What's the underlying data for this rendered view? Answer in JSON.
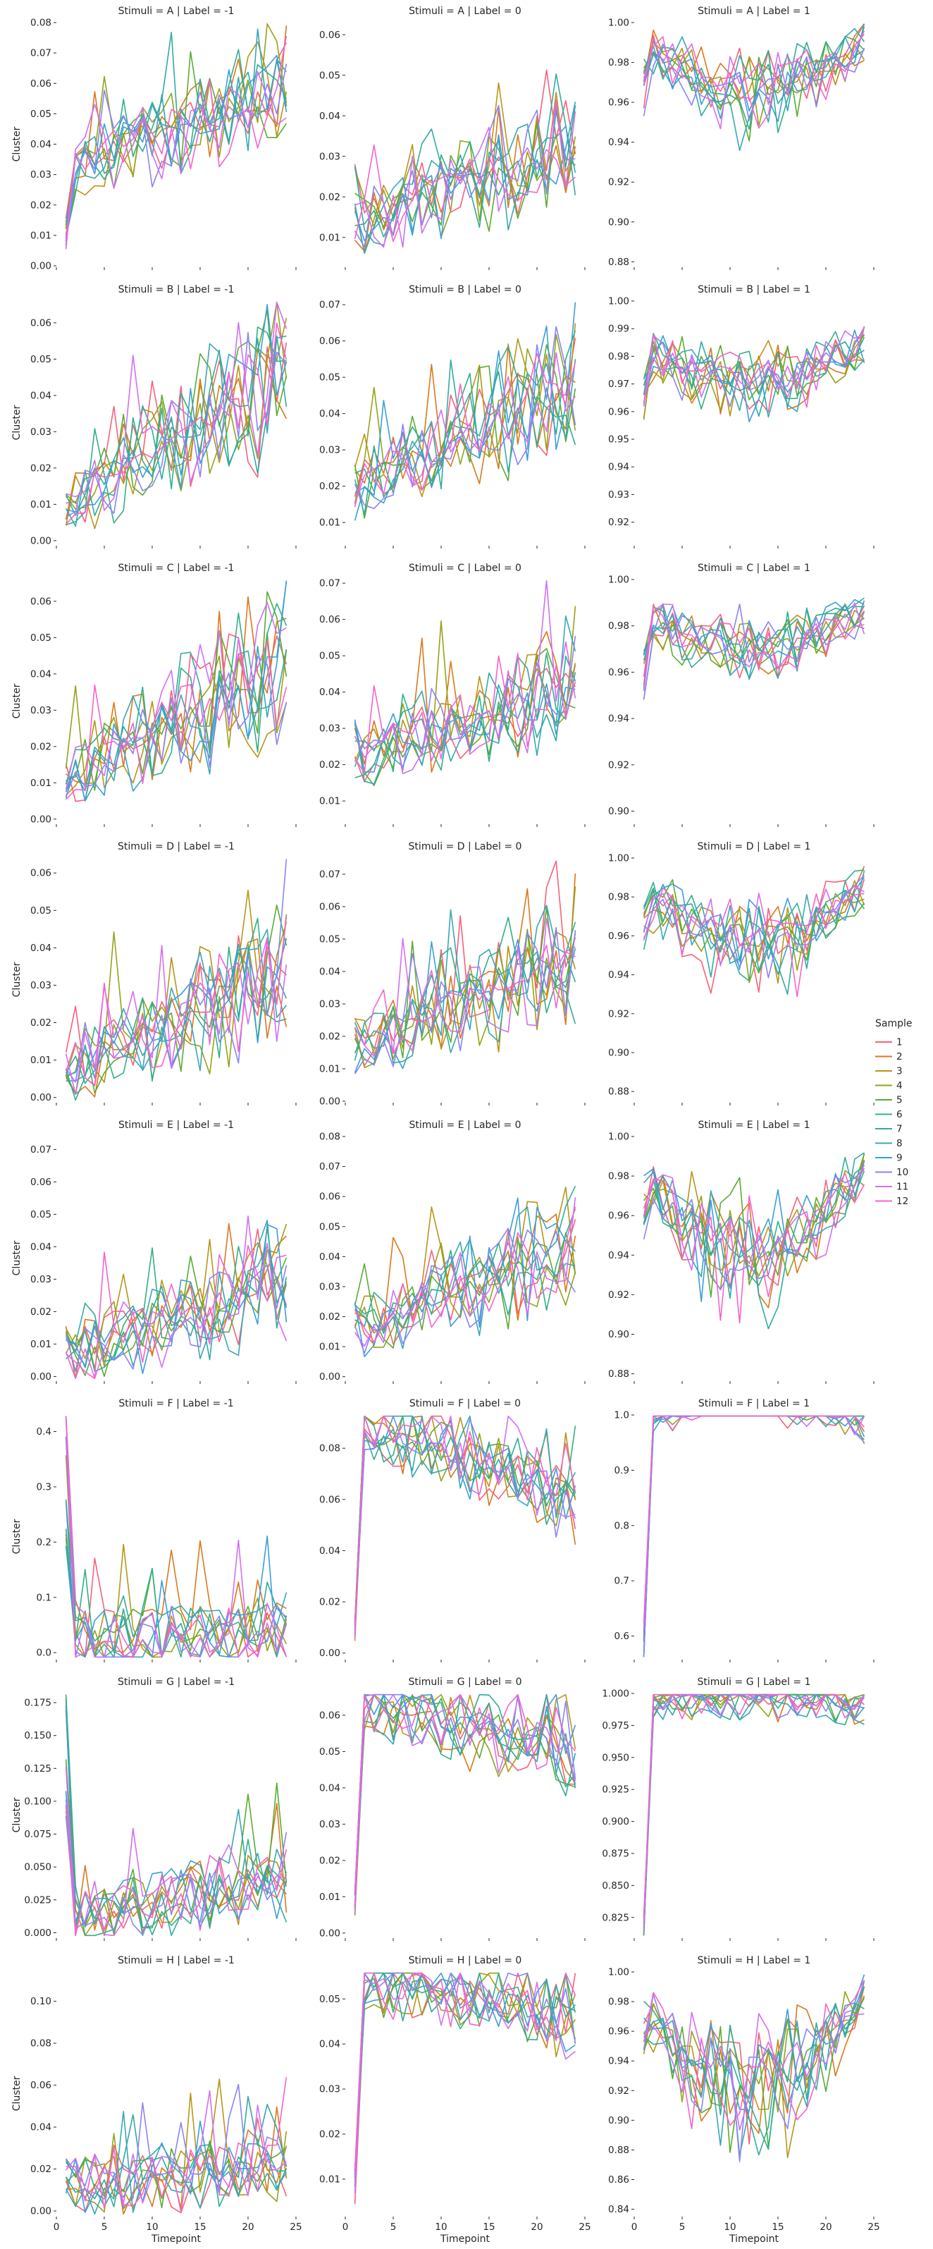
{
  "figure": {
    "legend_title": "Sample",
    "legend_labels": [
      "1",
      "2",
      "3",
      "4",
      "5",
      "6",
      "7",
      "8",
      "9",
      "10",
      "11",
      "12"
    ],
    "colors": [
      "#f7617b",
      "#da781d",
      "#b89518",
      "#96a21a",
      "#5aab32",
      "#31af88",
      "#32aba0",
      "#38a7b5",
      "#3c9ed7",
      "#8a84f4",
      "#d26ff3",
      "#f464cc"
    ]
  },
  "chart_data": {
    "type": "line",
    "stimuli": [
      "A",
      "B",
      "C",
      "D",
      "E",
      "F",
      "G",
      "H"
    ],
    "labels": [
      "-1",
      "0",
      "1"
    ],
    "panel_titles": [
      [
        "Stimuli = A | Label = -1",
        "Stimuli = A | Label = 0",
        "Stimuli = A | Label = 1"
      ],
      [
        "Stimuli = B | Label = -1",
        "Stimuli = B | Label = 0",
        "Stimuli = B | Label = 1"
      ],
      [
        "Stimuli = C | Label = -1",
        "Stimuli = C | Label = 0",
        "Stimuli = C | Label = 1"
      ],
      [
        "Stimuli = D | Label = -1",
        "Stimuli = D | Label = 0",
        "Stimuli = D | Label = 1"
      ],
      [
        "Stimuli = E | Label = -1",
        "Stimuli = E | Label = 0",
        "Stimuli = E | Label = 1"
      ],
      [
        "Stimuli = F | Label = -1",
        "Stimuli = F | Label = 0",
        "Stimuli = F | Label = 1"
      ],
      [
        "Stimuli = G | Label = -1",
        "Stimuli = G | Label = 0",
        "Stimuli = G | Label = 1"
      ],
      [
        "Stimuli = H | Label = -1",
        "Stimuli = H | Label = 0",
        "Stimuli = H | Label = 1"
      ]
    ],
    "xlabel": "Timepoint",
    "ylabel": "Cluster",
    "x_ticks": [
      "0",
      "5",
      "10",
      "15",
      "20",
      "25"
    ],
    "xlim": [
      0,
      25
    ],
    "grid": false,
    "legend_position": "right",
    "panel_y_ticks": [
      [
        [
          "0.00",
          "0.01",
          "0.02",
          "0.03",
          "0.04",
          "0.05",
          "0.06",
          "0.07",
          "0.08"
        ],
        [
          "0.01",
          "0.02",
          "0.03",
          "0.04",
          "0.05",
          "0.06"
        ],
        [
          "0.88",
          "0.90",
          "0.92",
          "0.94",
          "0.96",
          "0.98",
          "1.00"
        ]
      ],
      [
        [
          "0.00",
          "0.01",
          "0.02",
          "0.03",
          "0.04",
          "0.05",
          "0.06"
        ],
        [
          "0.01",
          "0.02",
          "0.03",
          "0.04",
          "0.05",
          "0.06",
          "0.07"
        ],
        [
          "0.92",
          "0.93",
          "0.94",
          "0.95",
          "0.96",
          "0.97",
          "0.98",
          "0.99",
          "1.00"
        ]
      ],
      [
        [
          "0.00",
          "0.01",
          "0.02",
          "0.03",
          "0.04",
          "0.05",
          "0.06"
        ],
        [
          "0.01",
          "0.02",
          "0.03",
          "0.04",
          "0.05",
          "0.06",
          "0.07"
        ],
        [
          "0.90",
          "0.92",
          "0.94",
          "0.96",
          "0.98",
          "1.00"
        ]
      ],
      [
        [
          "0.00",
          "0.01",
          "0.02",
          "0.03",
          "0.04",
          "0.05",
          "0.06"
        ],
        [
          "0.00",
          "0.01",
          "0.02",
          "0.03",
          "0.04",
          "0.05",
          "0.06",
          "0.07"
        ],
        [
          "0.88",
          "0.90",
          "0.92",
          "0.94",
          "0.96",
          "0.98",
          "1.00"
        ]
      ],
      [
        [
          "0.00",
          "0.01",
          "0.02",
          "0.03",
          "0.04",
          "0.05",
          "0.06",
          "0.07"
        ],
        [
          "0.00",
          "0.01",
          "0.02",
          "0.03",
          "0.04",
          "0.05",
          "0.06",
          "0.07",
          "0.08"
        ],
        [
          "0.88",
          "0.90",
          "0.92",
          "0.94",
          "0.96",
          "0.98",
          "1.00"
        ]
      ],
      [
        [
          "0.0",
          "0.1",
          "0.2",
          "0.3",
          "0.4"
        ],
        [
          "0.00",
          "0.02",
          "0.04",
          "0.06",
          "0.08"
        ],
        [
          "0.6",
          "0.7",
          "0.8",
          "0.9",
          "1.0"
        ]
      ],
      [
        [
          "0.000",
          "0.025",
          "0.050",
          "0.075",
          "0.100",
          "0.125",
          "0.150",
          "0.175"
        ],
        [
          "0.00",
          "0.01",
          "0.02",
          "0.03",
          "0.04",
          "0.05",
          "0.06"
        ],
        [
          "0.825",
          "0.850",
          "0.875",
          "0.900",
          "0.925",
          "0.950",
          "0.975",
          "1.000"
        ]
      ],
      [
        [
          "0.00",
          "0.02",
          "0.04",
          "0.06",
          "0.08",
          "0.10"
        ],
        [
          "0.01",
          "0.02",
          "0.03",
          "0.04",
          "0.05"
        ],
        [
          "0.84",
          "0.86",
          "0.88",
          "0.90",
          "0.92",
          "0.94",
          "0.96",
          "0.98",
          "1.00"
        ]
      ]
    ],
    "panel_ylim": [
      [
        [
          0,
          0.08
        ],
        [
          0.003,
          0.063
        ],
        [
          0.878,
          1.0
        ]
      ],
      [
        [
          -0.001,
          0.066
        ],
        [
          0.004,
          0.071
        ],
        [
          0.912,
          1.0
        ]
      ],
      [
        [
          -0.001,
          0.066
        ],
        [
          0.004,
          0.071
        ],
        [
          0.895,
          1.0
        ]
      ],
      [
        [
          -0.001,
          0.064
        ],
        [
          0.0,
          0.075
        ],
        [
          0.875,
          1.0
        ]
      ],
      [
        [
          -0.001,
          0.074
        ],
        [
          -0.001,
          0.08
        ],
        [
          0.877,
          1.0
        ]
      ],
      [
        [
          -0.01,
          0.43
        ],
        [
          -0.002,
          0.093
        ],
        [
          0.56,
          1.0
        ]
      ],
      [
        [
          -0.003,
          0.182
        ],
        [
          -0.001,
          0.066
        ],
        [
          0.81,
          1.0
        ]
      ],
      [
        [
          -0.002,
          0.114
        ],
        [
          0.002,
          0.056
        ],
        [
          0.836,
          1.0
        ]
      ]
    ],
    "panel_behaviour_note": "",
    "panel_profiles": [
      [
        [
          0.012,
          0.03,
          0.055,
          0.076
        ],
        [
          0.022,
          0.012,
          0.06,
          0.045
        ],
        [
          0.975,
          0.99,
          0.93,
          0.965
        ]
      ],
      [
        [
          0.01,
          0.008,
          0.055,
          0.066
        ],
        [
          0.02,
          0.018,
          0.05,
          0.067
        ],
        [
          0.97,
          0.985,
          0.94,
          0.96
        ]
      ],
      [
        [
          0.012,
          0.008,
          0.045,
          0.065
        ],
        [
          0.025,
          0.02,
          0.068,
          0.055
        ],
        [
          0.965,
          0.985,
          0.935,
          0.96
        ]
      ],
      [
        [
          0.01,
          0.005,
          0.062,
          0.05
        ],
        [
          0.02,
          0.015,
          0.073,
          0.06
        ],
        [
          0.97,
          0.985,
          0.91,
          0.945
        ]
      ],
      [
        [
          0.012,
          0.005,
          0.072,
          0.045
        ],
        [
          0.02,
          0.015,
          0.078,
          0.06
        ],
        [
          0.97,
          0.985,
          0.88,
          0.94
        ]
      ],
      [
        [
          0.42,
          0.02,
          0.18,
          0.05
        ],
        [
          0.01,
          0.09,
          0.03,
          0.05
        ],
        [
          0.6,
          0.98,
          0.8,
          0.92
        ]
      ],
      [
        [
          0.18,
          0.01,
          0.13,
          0.06
        ],
        [
          0.01,
          0.065,
          0.03,
          0.04
        ],
        [
          0.82,
          0.99,
          0.84,
          0.92
        ]
      ],
      [
        [
          0.02,
          0.01,
          0.112,
          0.03
        ],
        [
          0.01,
          0.055,
          0.03,
          0.04
        ],
        [
          0.97,
          0.985,
          0.84,
          0.95
        ]
      ]
    ],
    "series_names": [
      "1",
      "2",
      "3",
      "4",
      "5",
      "6",
      "7",
      "8",
      "9",
      "10",
      "11",
      "12"
    ]
  }
}
